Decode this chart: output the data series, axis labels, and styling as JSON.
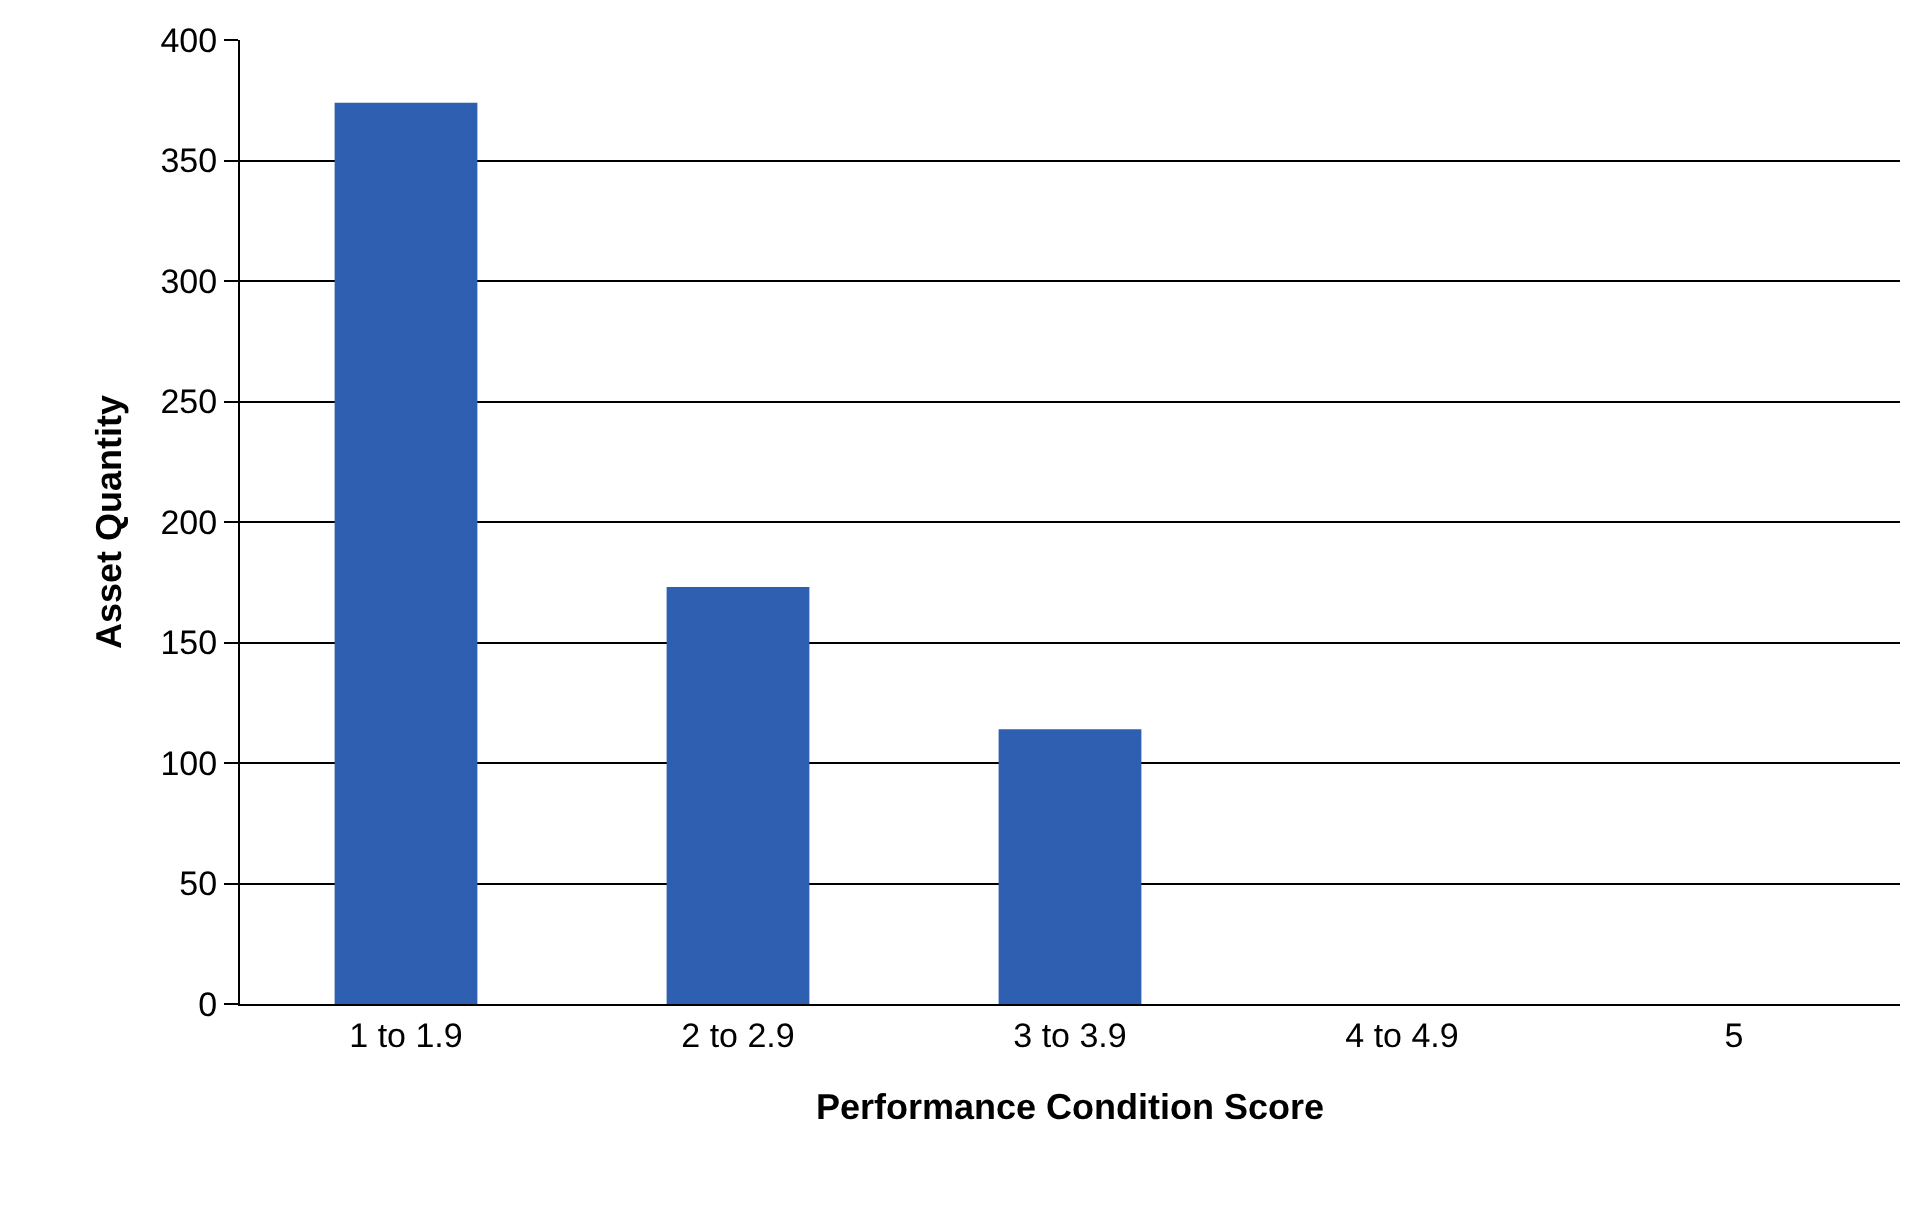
{
  "chart_data": {
    "type": "bar",
    "xlabel": "Performance Condition Score",
    "ylabel": "Asset Quantity",
    "categories": [
      "1 to 1.9",
      "2 to 2.9",
      "3 to 3.9",
      "4 to 4.9",
      "5"
    ],
    "values": [
      374,
      173,
      114,
      0,
      0
    ],
    "color": "#2f5fb0",
    "ylim": [
      0,
      400
    ],
    "yticks": [
      0,
      50,
      100,
      150,
      200,
      250,
      300,
      350,
      400
    ],
    "grid": "y",
    "legend": false
  }
}
